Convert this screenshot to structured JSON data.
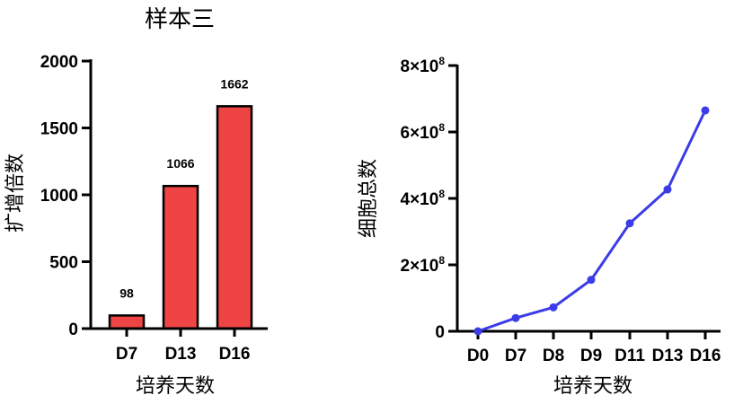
{
  "chart_data": [
    {
      "type": "bar",
      "title": "样本三",
      "xlabel": "培养天数",
      "ylabel": "扩增倍数",
      "categories": [
        "D7",
        "D13",
        "D16"
      ],
      "values": [
        98,
        1066,
        1662
      ],
      "data_labels": [
        "98",
        "1066",
        "1662"
      ],
      "ylim": [
        0,
        2000
      ],
      "yticks": [
        0,
        500,
        1000,
        1500,
        2000
      ],
      "ytick_labels": [
        "0",
        "500",
        "1000",
        "1500",
        "2000"
      ],
      "bar_color": "#ef4444",
      "grid": false
    },
    {
      "type": "line",
      "title": "",
      "xlabel": "培养天数",
      "ylabel": "细胞总数",
      "categories": [
        "D0",
        "D7",
        "D8",
        "D9",
        "D11",
        "D13",
        "D16"
      ],
      "values": [
        0,
        40000000,
        72000000,
        155000000,
        325000000,
        427000000,
        665000000
      ],
      "ylim": [
        0,
        800000000
      ],
      "yticks": [
        0,
        200000000,
        400000000,
        600000000,
        800000000
      ],
      "ytick_labels": [
        {
          "mantissa": "0",
          "exp": ""
        },
        {
          "mantissa": "2×10",
          "exp": "8"
        },
        {
          "mantissa": "4×10",
          "exp": "8"
        },
        {
          "mantissa": "6×10",
          "exp": "8"
        },
        {
          "mantissa": "8×10",
          "exp": "8"
        }
      ],
      "line_color": "#3b3be8",
      "grid": false
    }
  ]
}
